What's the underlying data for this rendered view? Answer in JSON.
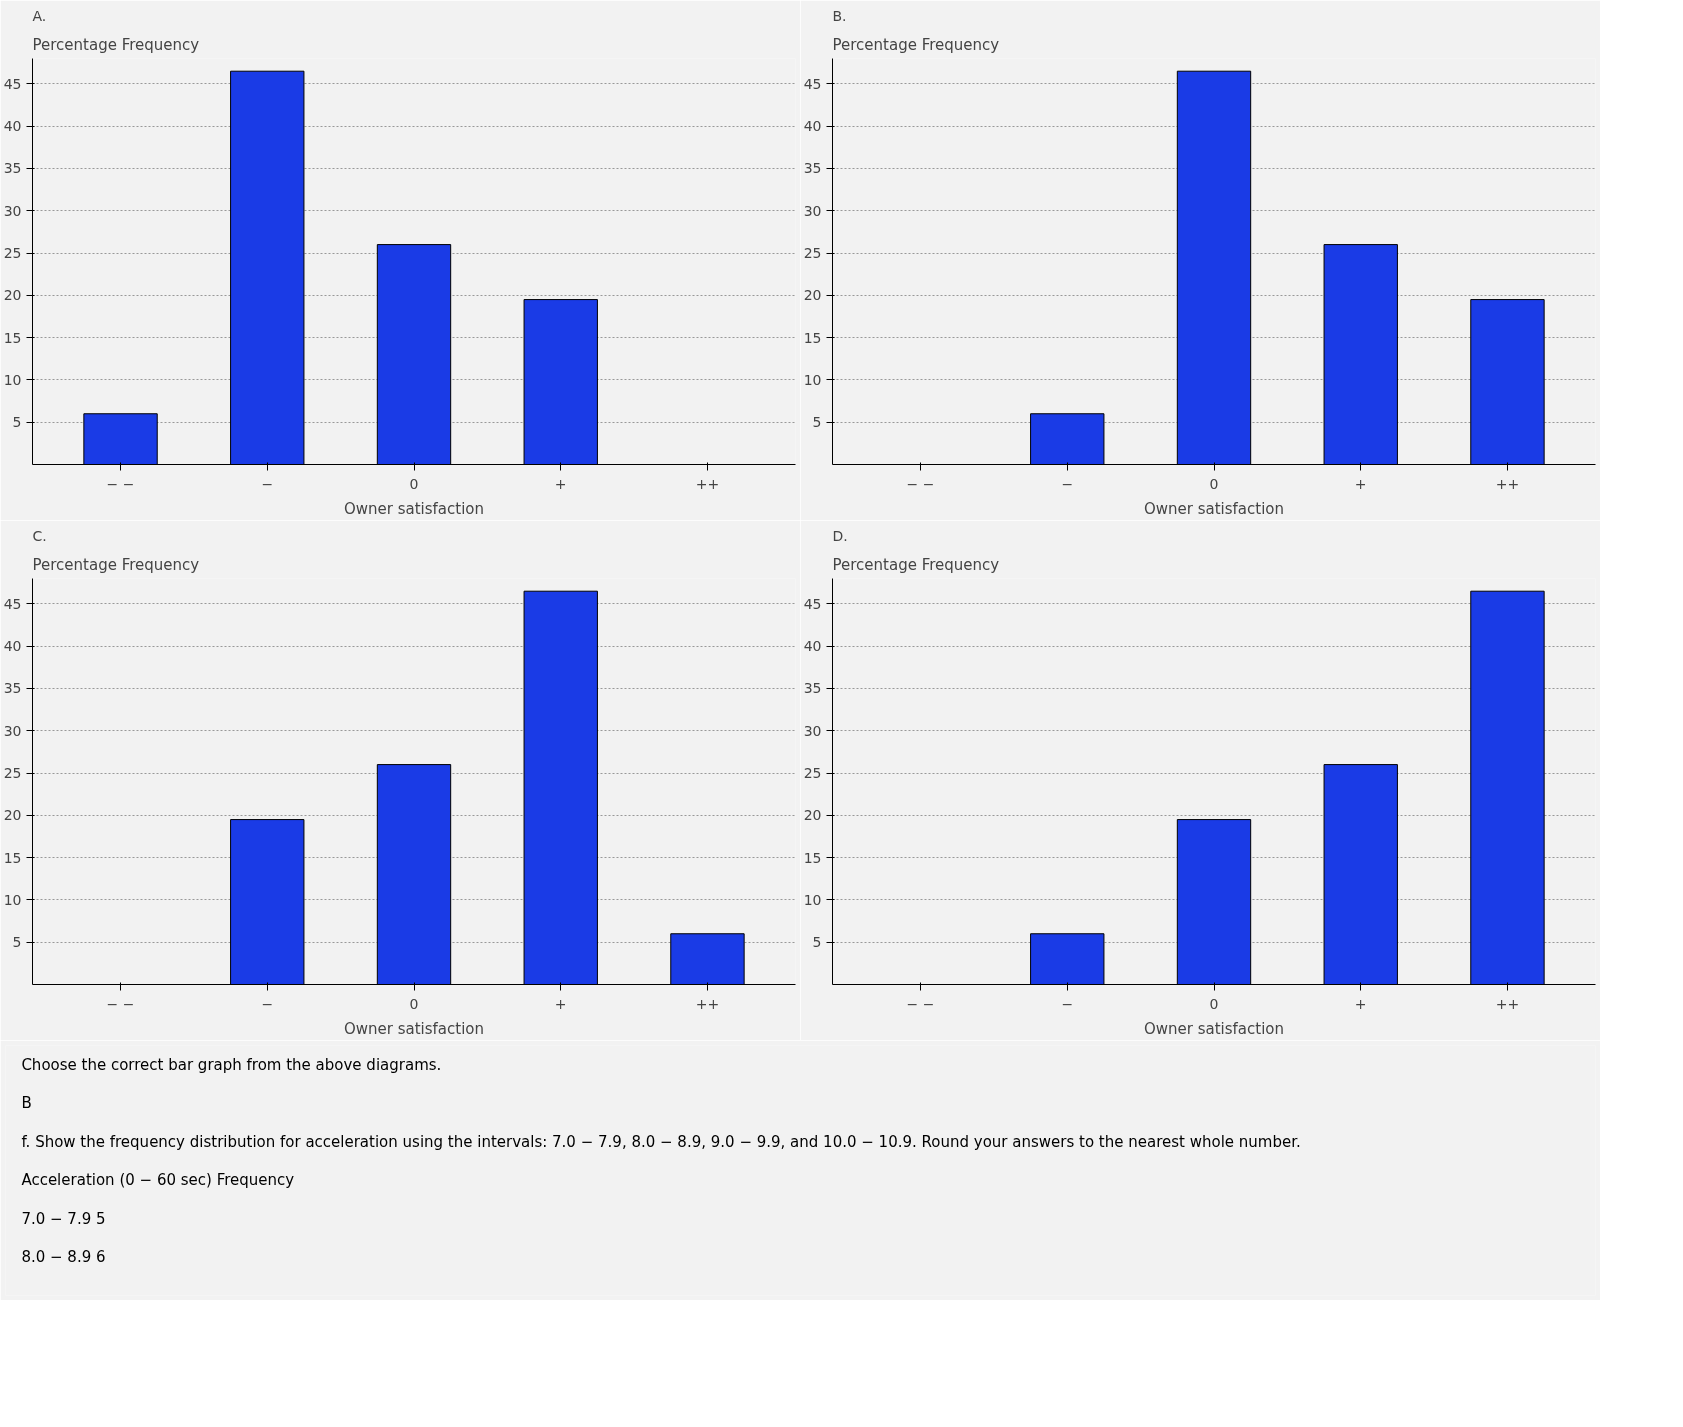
{
  "chart_data": [
    {
      "type": "bar",
      "title": "A.",
      "ylabel": "Percentage Frequency",
      "xlabel": "Owner satisfaction",
      "categories": [
        "− −",
        "−",
        "0",
        "+",
        "++"
      ],
      "values": [
        6,
        46.5,
        26,
        19.5,
        null
      ],
      "color": "#1a3be6",
      "ylim": [
        0,
        48
      ],
      "yticks": [
        5,
        10,
        15,
        20,
        25,
        30,
        35,
        40,
        45
      ],
      "grid": "y"
    },
    {
      "type": "bar",
      "title": "B.",
      "ylabel": "Percentage Frequency",
      "xlabel": "Owner satisfaction",
      "categories": [
        "− −",
        "−",
        "0",
        "+",
        "++"
      ],
      "values": [
        null,
        6,
        46.5,
        26,
        19.5
      ],
      "color": "#1a3be6",
      "ylim": [
        0,
        48
      ],
      "yticks": [
        5,
        10,
        15,
        20,
        25,
        30,
        35,
        40,
        45
      ],
      "grid": "y"
    },
    {
      "type": "bar",
      "title": "C.",
      "ylabel": "Percentage Frequency",
      "xlabel": "Owner satisfaction",
      "categories": [
        "− −",
        "−",
        "0",
        "+",
        "++"
      ],
      "values": [
        null,
        19.5,
        26,
        46.5,
        6
      ],
      "color": "#1a3be6",
      "ylim": [
        0,
        48
      ],
      "yticks": [
        5,
        10,
        15,
        20,
        25,
        30,
        35,
        40,
        45
      ],
      "grid": "y"
    },
    {
      "type": "bar",
      "title": "D.",
      "ylabel": "Percentage Frequency",
      "xlabel": "Owner satisfaction",
      "categories": [
        "− −",
        "−",
        "0",
        "+",
        "++"
      ],
      "values": [
        null,
        6,
        19.5,
        26,
        46.5
      ],
      "color": "#1a3be6",
      "ylim": [
        0,
        48
      ],
      "yticks": [
        5,
        10,
        15,
        20,
        25,
        30,
        35,
        40,
        45
      ],
      "grid": "y"
    },
    {
      "type": "other",
      "annotations": [
        "Choose the correct bar graph from the above diagrams.",
        "B",
        "f. Show the frequency distribution for acceleration using the intervals: 7.0 − 7.9, 8.0 − 8.9, 9.0 − 9.9, and 10.0 − 10.9. Round your answers to the nearest whole number.",
        "Acceleration (0 − 60 sec)          Frequency",
        "7.0 − 7.9          5",
        "8.0 − 8.9          6"
      ]
    }
  ]
}
